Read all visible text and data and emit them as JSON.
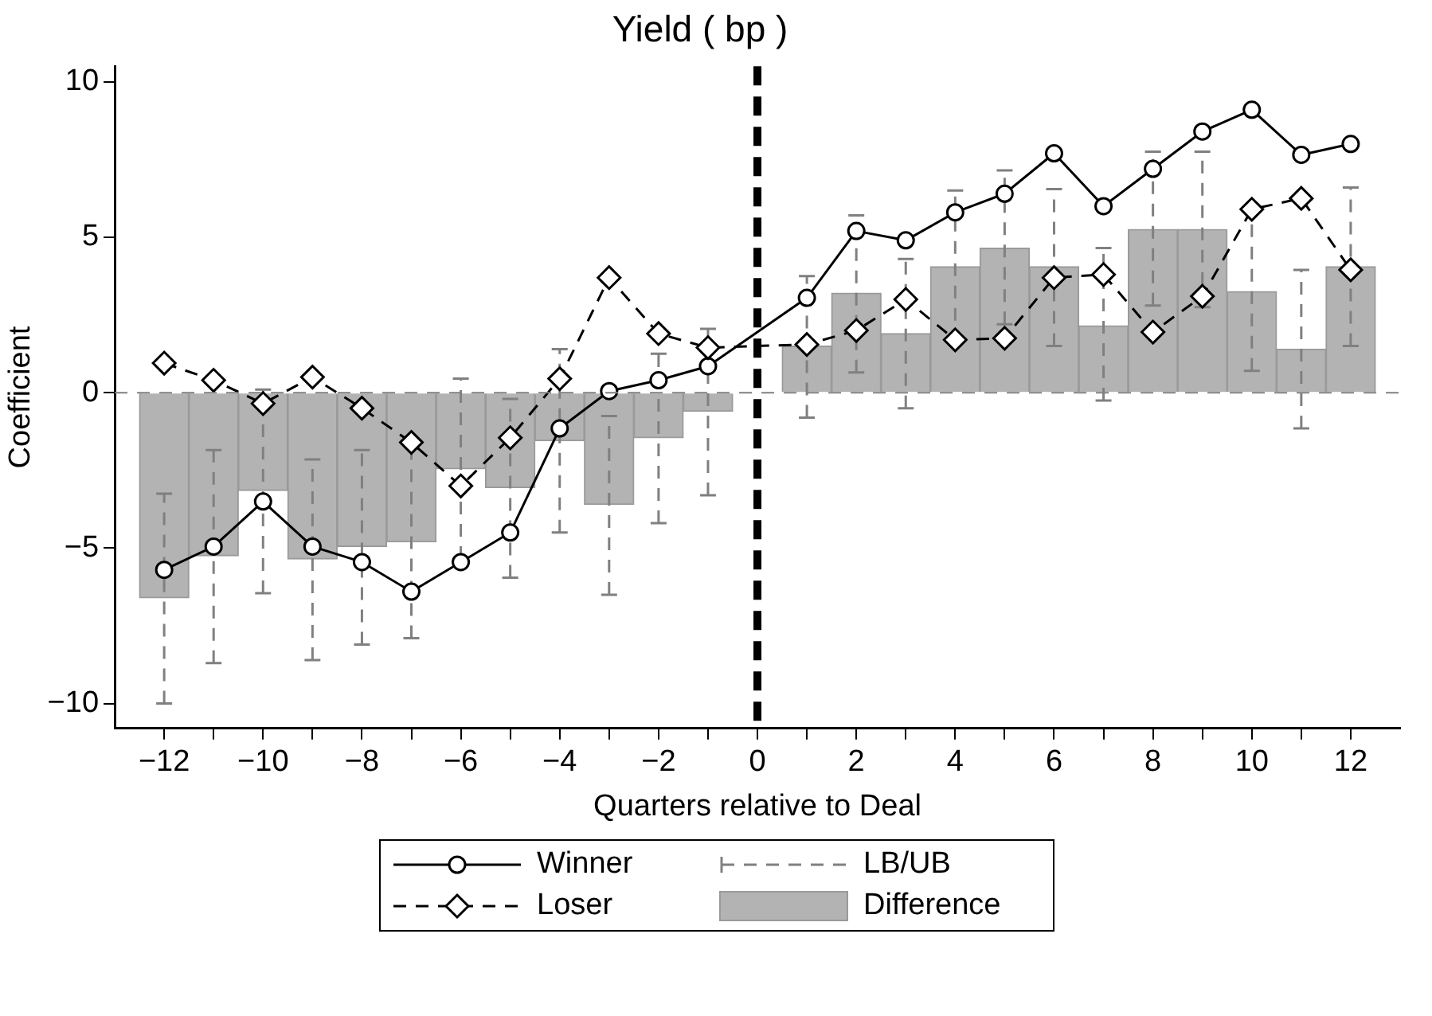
{
  "chart_data": {
    "type": "line",
    "title": "Yield ( bp )",
    "xlabel": "Quarters relative to Deal",
    "ylabel": "Coefficient",
    "x": [
      -12,
      -11,
      -10,
      -9,
      -8,
      -7,
      -6,
      -5,
      -4,
      -3,
      -2,
      -1,
      0,
      1,
      2,
      3,
      4,
      5,
      6,
      7,
      8,
      9,
      10,
      11,
      12
    ],
    "series": [
      {
        "name": "Difference",
        "type": "bar",
        "color": "#b3b3b3",
        "values": [
          -6.6,
          -5.25,
          -3.15,
          -5.35,
          -4.95,
          -4.8,
          -2.45,
          -3.05,
          -1.55,
          -3.6,
          -1.45,
          -0.6,
          null,
          1.5,
          3.2,
          1.9,
          4.05,
          4.65,
          4.05,
          2.15,
          5.25,
          5.25,
          3.25,
          1.4,
          4.05
        ],
        "errors": [
          [
            -10.0,
            -3.25
          ],
          [
            -8.7,
            -1.85
          ],
          [
            -6.45,
            0.1
          ],
          [
            -8.6,
            -2.15
          ],
          [
            -8.1,
            -1.85
          ],
          [
            -7.9,
            -1.7
          ],
          [
            -5.35,
            0.45
          ],
          [
            -5.95,
            -0.2
          ],
          [
            -4.5,
            1.4
          ],
          [
            -6.5,
            -0.75
          ],
          [
            -4.2,
            1.25
          ],
          [
            -3.3,
            2.05
          ],
          null,
          [
            -0.8,
            3.75
          ],
          [
            0.65,
            5.7
          ],
          [
            -0.5,
            4.3
          ],
          [
            1.6,
            6.5
          ],
          [
            2.2,
            7.15
          ],
          [
            1.5,
            6.55
          ],
          [
            -0.25,
            4.65
          ],
          [
            2.8,
            7.75
          ],
          [
            2.75,
            7.75
          ],
          [
            0.7,
            5.8
          ],
          [
            -1.15,
            3.95
          ],
          [
            1.5,
            6.6
          ]
        ]
      },
      {
        "name": "Loser",
        "marker": "diamond",
        "line_style": "dashed",
        "color": "#000000",
        "values": [
          0.95,
          0.4,
          -0.35,
          0.5,
          -0.5,
          -1.6,
          -3.0,
          -1.45,
          0.45,
          3.7,
          1.9,
          1.45,
          null,
          1.55,
          2.0,
          3.0,
          1.7,
          1.75,
          3.7,
          3.8,
          1.95,
          3.1,
          5.9,
          6.25,
          3.95
        ]
      },
      {
        "name": "Winner",
        "marker": "circle",
        "line_style": "solid",
        "color": "#000000",
        "values": [
          -5.7,
          -4.95,
          -3.5,
          -4.95,
          -5.45,
          -6.4,
          -5.45,
          -4.5,
          -1.15,
          0.05,
          0.4,
          0.85,
          null,
          3.05,
          5.2,
          4.9,
          5.8,
          6.4,
          7.7,
          6.0,
          7.2,
          8.4,
          9.1,
          7.65,
          8.0
        ]
      }
    ],
    "xlim": [
      -13,
      13
    ],
    "xticks": [
      {
        "value": -12,
        "label": "−12"
      },
      {
        "value": -11,
        "label": null
      },
      {
        "value": -10,
        "label": "−10"
      },
      {
        "value": -9,
        "label": null
      },
      {
        "value": -8,
        "label": "−8"
      },
      {
        "value": -7,
        "label": null
      },
      {
        "value": -6,
        "label": "−6"
      },
      {
        "value": -5,
        "label": null
      },
      {
        "value": -4,
        "label": "−4"
      },
      {
        "value": -3,
        "label": null
      },
      {
        "value": -2,
        "label": "−2"
      },
      {
        "value": -1,
        "label": null
      },
      0,
      {
        "value": 1,
        "label": null
      },
      2,
      {
        "value": 3,
        "label": null
      },
      4,
      {
        "value": 5,
        "label": null
      },
      6,
      {
        "value": 7,
        "label": null
      },
      8,
      {
        "value": 9,
        "label": null
      },
      10,
      {
        "value": 11,
        "label": null
      },
      12
    ],
    "ylim": [
      -10.8,
      10.5
    ],
    "yticks": [
      {
        "value": -10,
        "label": "−10"
      },
      {
        "value": -5,
        "label": "−5"
      },
      0,
      5,
      10
    ],
    "ref_lines": [
      {
        "axis": "x",
        "value": 0,
        "color": "#000000",
        "line_style": "dashed"
      },
      {
        "axis": "y",
        "value": 0,
        "color": "#808080",
        "line_style": "dashed"
      }
    ],
    "annotations": [
      "LB/UB"
    ],
    "legend": "bottom",
    "grid": false
  }
}
